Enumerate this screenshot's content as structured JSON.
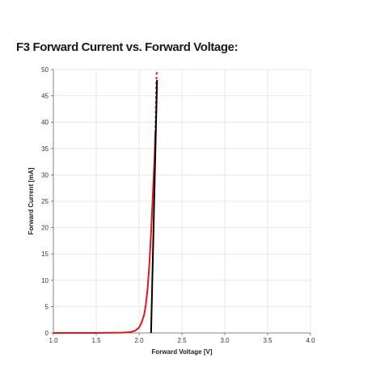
{
  "page": {
    "title": "F3 Forward Current vs. Forward Voltage:"
  },
  "colors": {
    "measured_curve": "#e8141a",
    "fit_line": "#000000",
    "gridline": "#e2e2e2",
    "axis": "#666666"
  },
  "chart_data": {
    "type": "line",
    "title": "",
    "xlabel": "Forward Voltage [V]",
    "ylabel": "Forward Current [mA]",
    "xlim": [
      1.0,
      4.0
    ],
    "ylim": [
      0,
      50
    ],
    "xticks": [
      1.0,
      1.5,
      2.0,
      2.5,
      3.0,
      3.5,
      4.0
    ],
    "xtick_labels": [
      "1.0",
      "1.5",
      "2.0",
      "2.5",
      "3.0",
      "3.5",
      "4.0"
    ],
    "yticks": [
      0,
      5,
      10,
      15,
      20,
      25,
      30,
      35,
      40,
      45,
      50
    ],
    "ytick_labels": [
      "0",
      "5",
      "10",
      "15",
      "20",
      "25",
      "30",
      "35",
      "40",
      "45",
      "50"
    ],
    "grid": true,
    "legend": "none",
    "series": [
      {
        "style": "solid-red",
        "x": [
          1.0,
          1.5,
          1.8,
          1.9,
          1.95,
          2.0,
          2.03,
          2.06,
          2.08,
          2.1,
          2.12,
          2.14,
          2.16,
          2.18,
          2.19,
          2.2
        ],
        "y": [
          0,
          0,
          0.05,
          0.15,
          0.4,
          1.0,
          2.0,
          3.5,
          5.5,
          8.5,
          13,
          19,
          26,
          33,
          38,
          47
        ],
        "dashed_from_x": 2.19
      },
      {
        "style": "solid-black",
        "x": [
          2.14,
          2.21
        ],
        "y": [
          0,
          48
        ]
      }
    ]
  }
}
